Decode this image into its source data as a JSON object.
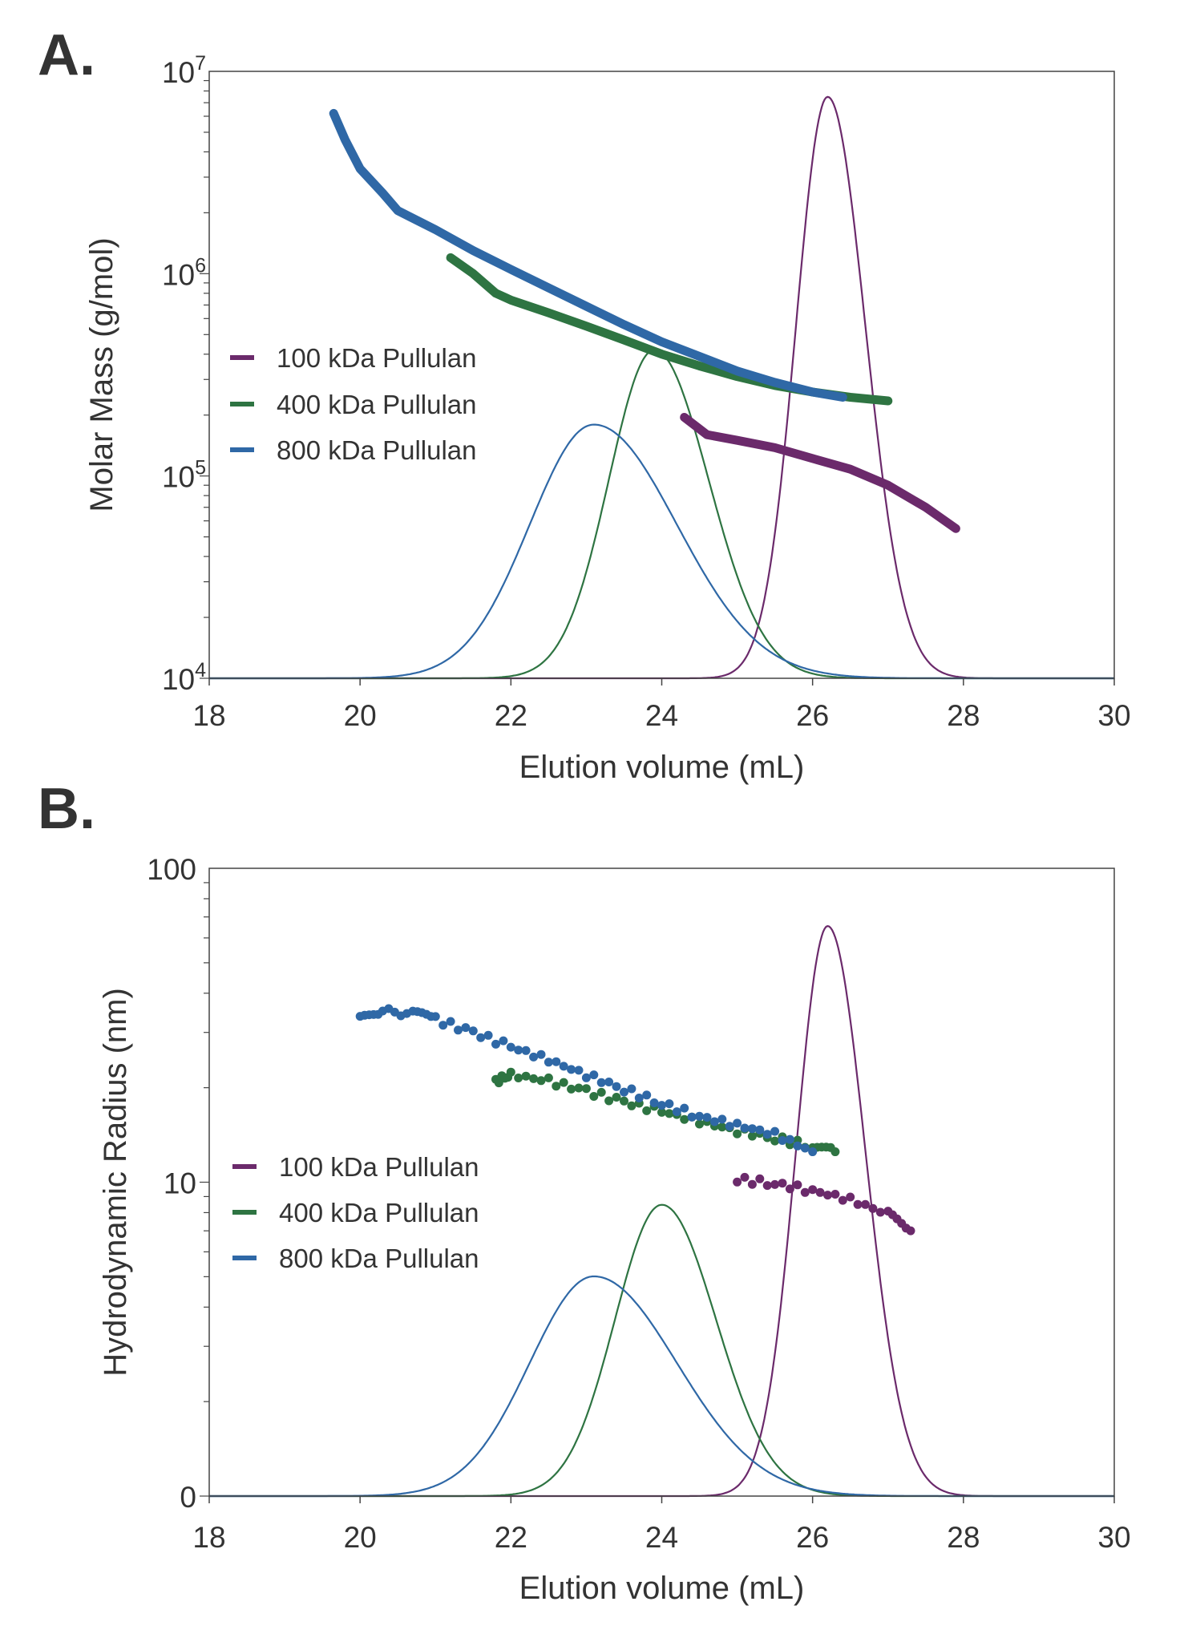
{
  "colors": {
    "100 kDa Pullulan": "#6b2a6b",
    "400 kDa Pullulan": "#2e7442",
    "800 kDa Pullulan": "#2f68a6",
    "axis": "#444444"
  },
  "chart_data": [
    {
      "panel_label": "A.",
      "type": "scatter",
      "xlabel": "Elution volume (mL)",
      "ylabel": "Molar Mass (g/mol)",
      "xlim": [
        18,
        30
      ],
      "xticks": [
        "18",
        "20",
        "22",
        "24",
        "26",
        "28",
        "30"
      ],
      "ylim": [
        10000,
        10000000
      ],
      "yscale": "log",
      "yticks": [
        {
          "value": 10000,
          "base": "10",
          "exp": "4"
        },
        {
          "value": 100000,
          "base": "10",
          "exp": "5"
        },
        {
          "value": 1000000,
          "base": "10",
          "exp": "6"
        },
        {
          "value": 10000000,
          "base": "10",
          "exp": "7"
        }
      ],
      "grid": false,
      "legend": {
        "placement": "center-left",
        "entries": [
          "100 kDa Pullulan",
          "400 kDa Pullulan",
          "800 kDa Pullulan"
        ]
      },
      "series": [
        {
          "name": "100 kDa Pullulan",
          "points": [
            [
              24.3,
              195000
            ],
            [
              24.6,
              160000
            ],
            [
              25,
              150000
            ],
            [
              25.5,
              138000
            ],
            [
              26,
              122000
            ],
            [
              26.5,
              108000
            ],
            [
              27,
              90000
            ],
            [
              27.5,
              70000
            ],
            [
              27.9,
              55000
            ]
          ]
        },
        {
          "name": "400 kDa Pullulan",
          "points": [
            [
              21.2,
              1200000
            ],
            [
              21.5,
              1000000
            ],
            [
              21.8,
              800000
            ],
            [
              22,
              740000
            ],
            [
              22.5,
              640000
            ],
            [
              23,
              550000
            ],
            [
              23.5,
              470000
            ],
            [
              24,
              400000
            ],
            [
              24.5,
              350000
            ],
            [
              25,
              310000
            ],
            [
              25.5,
              280000
            ],
            [
              26,
              260000
            ],
            [
              26.5,
              245000
            ],
            [
              27,
              235000
            ]
          ]
        },
        {
          "name": "800 kDa Pullulan",
          "points": [
            [
              19.65,
              6200000
            ],
            [
              19.8,
              4600000
            ],
            [
              20,
              3300000
            ],
            [
              20.3,
              2500000
            ],
            [
              20.5,
              2050000
            ],
            [
              21,
              1650000
            ],
            [
              21.5,
              1300000
            ],
            [
              22,
              1050000
            ],
            [
              22.5,
              850000
            ],
            [
              23,
              690000
            ],
            [
              23.5,
              560000
            ],
            [
              24,
              460000
            ],
            [
              24.5,
              390000
            ],
            [
              25,
              330000
            ],
            [
              25.5,
              290000
            ],
            [
              26,
              260000
            ],
            [
              26.4,
              245000
            ]
          ]
        }
      ],
      "chromatograms": {
        "signal_range": [
          0,
          1
        ],
        "peaks": [
          {
            "name": "100 kDa Pullulan",
            "center": 26.2,
            "height": 0.958,
            "sigma_left": 0.42,
            "sigma_right": 0.5
          },
          {
            "name": "400 kDa Pullulan",
            "center": 23.9,
            "height": 0.541,
            "sigma_left": 0.6,
            "sigma_right": 0.72
          },
          {
            "name": "800 kDa Pullulan",
            "center": 23.1,
            "height": 0.418,
            "sigma_left": 0.85,
            "sigma_right": 1.1
          }
        ]
      }
    },
    {
      "panel_label": "B.",
      "type": "scatter",
      "xlabel": "Elution volume (mL)",
      "ylabel": "Hydrodynamic Radius (nm)",
      "xlim": [
        18,
        30
      ],
      "xticks": [
        "18",
        "20",
        "22",
        "24",
        "26",
        "28",
        "30"
      ],
      "ylim": [
        1,
        100
      ],
      "yscale": "log",
      "yticks": [
        {
          "value": 1,
          "base": "0",
          "exp": ""
        },
        {
          "value": 10,
          "base": "10",
          "exp": ""
        },
        {
          "value": 100,
          "base": "100",
          "exp": ""
        }
      ],
      "grid": false,
      "legend": {
        "placement": "center-left",
        "entries": [
          "100 kDa Pullulan",
          "400 kDa Pullulan",
          "800 kDa Pullulan"
        ]
      },
      "series": [
        {
          "name": "100 kDa Pullulan",
          "points": [
            [
              25,
              10.2
            ],
            [
              25.5,
              9.9
            ],
            [
              26,
              9.4
            ],
            [
              26.5,
              8.8
            ],
            [
              27,
              7.9
            ],
            [
              27.3,
              7.0
            ]
          ]
        },
        {
          "name": "400 kDa Pullulan",
          "points": [
            [
              21.8,
              21
            ],
            [
              22,
              22
            ],
            [
              22.5,
              21
            ],
            [
              23,
              19.5
            ],
            [
              23.5,
              18
            ],
            [
              24,
              16.8
            ],
            [
              24.5,
              15.6
            ],
            [
              25,
              14.6
            ],
            [
              25.5,
              13.8
            ],
            [
              26,
              13
            ],
            [
              26.3,
              12.5
            ]
          ]
        },
        {
          "name": "800 kDa Pullulan",
          "points": [
            [
              20,
              33
            ],
            [
              20.3,
              35
            ],
            [
              20.7,
              34.5
            ],
            [
              21,
              33
            ],
            [
              21.5,
              30
            ],
            [
              22,
              27
            ],
            [
              22.5,
              24.5
            ],
            [
              23,
              22
            ],
            [
              23.5,
              19.8
            ],
            [
              24,
              17.8
            ],
            [
              24.5,
              16.2
            ],
            [
              25,
              15.2
            ],
            [
              25.5,
              14.2
            ],
            [
              26,
              12.5
            ]
          ]
        }
      ],
      "chromatograms": {
        "signal_range": [
          0,
          1
        ],
        "peaks": [
          {
            "name": "100 kDa Pullulan",
            "center": 26.2,
            "height": 0.908,
            "sigma_left": 0.42,
            "sigma_right": 0.5
          },
          {
            "name": "400 kDa Pullulan",
            "center": 24.0,
            "height": 0.464,
            "sigma_left": 0.62,
            "sigma_right": 0.72
          },
          {
            "name": "800 kDa Pullulan",
            "center": 23.1,
            "height": 0.35,
            "sigma_left": 0.85,
            "sigma_right": 1.1
          }
        ]
      }
    }
  ]
}
